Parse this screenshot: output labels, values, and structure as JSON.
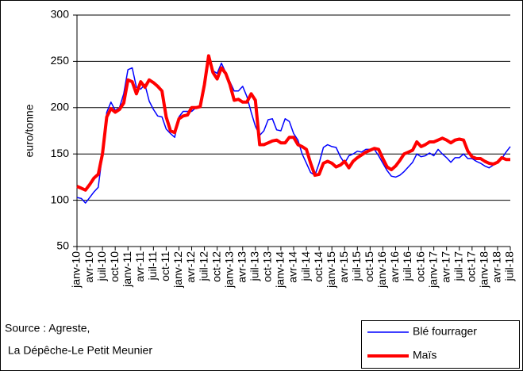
{
  "chart_data": {
    "type": "line",
    "ylabel": "euro/tonne",
    "ylim": [
      50,
      300
    ],
    "yticks": [
      50,
      100,
      150,
      200,
      250,
      300
    ],
    "grid": true,
    "categories": [
      "janv-10",
      null,
      null,
      "avr-10",
      null,
      null,
      "juil-10",
      null,
      null,
      "oct-10",
      null,
      null,
      "janv-11",
      null,
      null,
      "avr-11",
      null,
      null,
      "juil-11",
      null,
      null,
      "oct-11",
      null,
      null,
      "janv-12",
      null,
      null,
      "avr-12",
      null,
      null,
      "juil-12",
      null,
      null,
      "oct-12",
      null,
      null,
      "janv-13",
      null,
      null,
      "avr-13",
      null,
      null,
      "juil-13",
      null,
      null,
      "oct-13",
      null,
      null,
      "janv-14",
      null,
      null,
      "avr-14",
      null,
      null,
      "juil-14",
      null,
      null,
      "oct-14",
      null,
      null,
      "janv-15",
      null,
      null,
      "avr-15",
      null,
      null,
      "juil-15",
      null,
      null,
      "oct-15",
      null,
      null,
      "janv-16",
      null,
      null,
      "avr-16",
      null,
      null,
      "juil-16",
      null,
      null,
      "oct-16",
      null,
      null,
      "janv-17",
      null,
      null,
      "avr-17",
      null,
      null,
      "juil-17",
      null,
      null,
      "oct-17",
      null,
      null,
      "janv-18",
      null,
      null,
      "avr-18",
      null,
      null,
      "juil-18"
    ],
    "series": [
      {
        "name": "Blé fourrager",
        "color": "#0000ff",
        "width": 1.5,
        "values": [
          103,
          102,
          97,
          103,
          109,
          114,
          150,
          195,
          206,
          197,
          200,
          215,
          241,
          243,
          222,
          220,
          225,
          207,
          198,
          191,
          190,
          177,
          172,
          168,
          190,
          196,
          196,
          196,
          200,
          200,
          225,
          250,
          240,
          237,
          248,
          238,
          228,
          218,
          218,
          223,
          212,
          195,
          180,
          170,
          175,
          187,
          188,
          176,
          175,
          188,
          185,
          172,
          165,
          150,
          140,
          130,
          127,
          140,
          157,
          160,
          158,
          157,
          147,
          140,
          148,
          150,
          153,
          152,
          155,
          155,
          155,
          148,
          140,
          132,
          126,
          125,
          127,
          131,
          136,
          141,
          150,
          147,
          148,
          151,
          148,
          155,
          150,
          146,
          141,
          146,
          146,
          150,
          145,
          145,
          142,
          140,
          137,
          135,
          138,
          142,
          145,
          152,
          158
        ]
      },
      {
        "name": "Maïs",
        "color": "#ff0000",
        "width": 4,
        "values": [
          115,
          113,
          111,
          117,
          124,
          128,
          150,
          190,
          199,
          195,
          198,
          205,
          230,
          228,
          215,
          228,
          222,
          230,
          227,
          223,
          218,
          190,
          175,
          173,
          188,
          191,
          192,
          200,
          200,
          201,
          225,
          256,
          238,
          231,
          243,
          237,
          225,
          208,
          209,
          206,
          206,
          215,
          208,
          160,
          160,
          162,
          164,
          165,
          162,
          162,
          168,
          168,
          160,
          158,
          155,
          140,
          127,
          128,
          140,
          142,
          140,
          136,
          138,
          142,
          135,
          142,
          146,
          149,
          152,
          154,
          156,
          155,
          145,
          136,
          133,
          137,
          143,
          150,
          152,
          154,
          163,
          158,
          160,
          163,
          163,
          165,
          167,
          165,
          162,
          165,
          166,
          165,
          153,
          147,
          145,
          145,
          142,
          140,
          139,
          141,
          146,
          144,
          144
        ]
      }
    ],
    "source": [
      "Source : Agreste,",
      " La Dépêche-Le Petit Meunier"
    ]
  }
}
